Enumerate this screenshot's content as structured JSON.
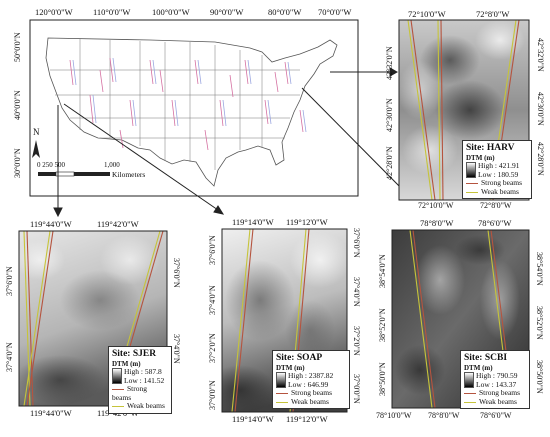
{
  "colors": {
    "strong": "#b5543f",
    "weak": "#c6c43a",
    "map_line": "#555555"
  },
  "overview": {
    "lon_ticks": [
      "120°0'0\"W",
      "110°0'0\"W",
      "100°0'0\"W",
      "90°0'0\"W",
      "80°0'0\"W",
      "70°0'0\"W"
    ],
    "lat_ticks": [
      "50°0'0\"N",
      "40°0'0\"N",
      "30°0'0\"N"
    ],
    "north": "N",
    "scale_numbers": "0  250 500",
    "scale_end": "1,000",
    "scale_unit": "Kilometers"
  },
  "sites": {
    "harv": {
      "top_ticks": [
        "72°10'0\"W",
        "72°8'0\"W"
      ],
      "bottom_ticks": [
        "72°10'0\"W",
        "72°8'0\"W"
      ],
      "left_ticks": [
        "42°32'0\"N",
        "42°30'0\"N",
        "42°28'0\"N"
      ],
      "right_ticks": [
        "42°32'0\"N",
        "42°30'0\"N",
        "42°28'0\"N"
      ],
      "site": "Site: HARV",
      "unit": "DTM (m)",
      "high": "High : 421.91",
      "low": "Low : 180.59",
      "strong": "Strong beams",
      "weak": "Weak beams"
    },
    "sjer": {
      "top_ticks": [
        "119°44'0\"W",
        "119°42'0\"W"
      ],
      "bottom_ticks": [
        "119°44'0\"W",
        "119°42'0\"W"
      ],
      "left_ticks": [
        "37°6'0\"N",
        "37°4'0\"N"
      ],
      "right_ticks": [
        "37°6'0\"N",
        "37°4'0\"N"
      ],
      "site": "Site: SJER",
      "unit": "DTM (m)",
      "high": "High : 587.8",
      "low": "Low : 141.52",
      "strong": "Strong beams",
      "weak": "Weak beams"
    },
    "soap": {
      "top_ticks": [
        "119°14'0\"W",
        "119°12'0\"W"
      ],
      "bottom_ticks": [
        "119°14'0\"W",
        "119°12'0\"W"
      ],
      "left_ticks": [
        "37°6'0\"N",
        "37°4'0\"N",
        "37°2'0\"N",
        "37°0'0\"N"
      ],
      "right_ticks": [
        "37°6'0\"N",
        "37°4'0\"N",
        "37°2'0\"N",
        "37°0'0\"N"
      ],
      "site": "Site: SOAP",
      "unit": "DTM (m)",
      "high": "High : 2387.82",
      "low": "Low : 646.99",
      "strong": "Strong beams",
      "weak": "Weak beams"
    },
    "scbi": {
      "top_ticks": [
        "78°8'0\"W",
        "78°6'0\"W"
      ],
      "bottom_ticks": [
        "78°10'0\"W",
        "78°8'0\"W",
        "78°6'0\"W"
      ],
      "left_ticks": [
        "38°54'0\"N",
        "38°52'0\"N",
        "38°50'0\"N"
      ],
      "right_ticks": [
        "38°54'0\"N",
        "38°52'0\"N",
        "38°50'0\"N"
      ],
      "site": "Site: SCBI",
      "unit": "DTM (m)",
      "high": "High : 790.59",
      "low": "Low : 143.37",
      "strong": "Strong beams",
      "weak": "Weak beams"
    }
  }
}
